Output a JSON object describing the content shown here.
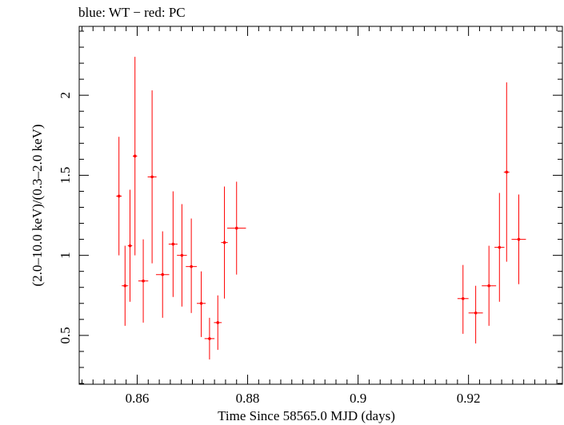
{
  "chart_data": {
    "type": "scatter",
    "title": "blue: WT − red: PC",
    "xlabel": "Time Since 58565.0 MJD (days)",
    "ylabel": "(2.0–10.0 keV)/(0.3–2.0 keV)",
    "xlim": [
      0.8495,
      0.937
    ],
    "ylim": [
      0.195,
      2.43
    ],
    "xticks": [
      0.86,
      0.88,
      0.9,
      0.92
    ],
    "xtick_labels": [
      "0.86",
      "0.88",
      "0.9",
      "0.92"
    ],
    "yticks": [
      0.5,
      1,
      1.5,
      2
    ],
    "ytick_labels": [
      "0.5",
      "1",
      "1.5",
      "2"
    ],
    "grid": false,
    "series": [
      {
        "color": "#ff0000",
        "points": [
          {
            "x": 0.8567,
            "xerr": 0.0005,
            "y": 1.37,
            "ylo": 1.0,
            "yhi": 1.74
          },
          {
            "x": 0.8578,
            "xerr": 0.0006,
            "y": 0.81,
            "ylo": 0.56,
            "yhi": 1.06
          },
          {
            "x": 0.8587,
            "xerr": 0.0004,
            "y": 1.06,
            "ylo": 0.71,
            "yhi": 1.41
          },
          {
            "x": 0.8596,
            "xerr": 0.0004,
            "y": 1.62,
            "ylo": 1.0,
            "yhi": 2.24
          },
          {
            "x": 0.8611,
            "xerr": 0.0009,
            "y": 0.84,
            "ylo": 0.58,
            "yhi": 1.1
          },
          {
            "x": 0.8627,
            "xerr": 0.0008,
            "y": 1.49,
            "ylo": 0.95,
            "yhi": 2.03
          },
          {
            "x": 0.8646,
            "xerr": 0.0012,
            "y": 0.88,
            "ylo": 0.61,
            "yhi": 1.15
          },
          {
            "x": 0.8665,
            "xerr": 0.0008,
            "y": 1.07,
            "ylo": 0.74,
            "yhi": 1.4
          },
          {
            "x": 0.8681,
            "xerr": 0.0009,
            "y": 1.0,
            "ylo": 0.68,
            "yhi": 1.32
          },
          {
            "x": 0.8698,
            "xerr": 0.001,
            "y": 0.93,
            "ylo": 0.64,
            "yhi": 1.23
          },
          {
            "x": 0.8716,
            "xerr": 0.0008,
            "y": 0.7,
            "ylo": 0.49,
            "yhi": 0.9
          },
          {
            "x": 0.8731,
            "xerr": 0.0009,
            "y": 0.48,
            "ylo": 0.35,
            "yhi": 0.61
          },
          {
            "x": 0.8746,
            "xerr": 0.0007,
            "y": 0.58,
            "ylo": 0.41,
            "yhi": 0.75
          },
          {
            "x": 0.8758,
            "xerr": 0.0006,
            "y": 1.08,
            "ylo": 0.73,
            "yhi": 1.43
          },
          {
            "x": 0.878,
            "xerr": 0.0017,
            "y": 1.17,
            "ylo": 0.88,
            "yhi": 1.46
          },
          {
            "x": 0.919,
            "xerr": 0.001,
            "y": 0.73,
            "ylo": 0.51,
            "yhi": 0.94
          },
          {
            "x": 0.9213,
            "xerr": 0.0013,
            "y": 0.64,
            "ylo": 0.45,
            "yhi": 0.81
          },
          {
            "x": 0.9237,
            "xerr": 0.0013,
            "y": 0.81,
            "ylo": 0.56,
            "yhi": 1.06
          },
          {
            "x": 0.9256,
            "xerr": 0.0009,
            "y": 1.05,
            "ylo": 0.71,
            "yhi": 1.39
          },
          {
            "x": 0.9269,
            "xerr": 0.0005,
            "y": 1.52,
            "ylo": 0.96,
            "yhi": 2.08
          },
          {
            "x": 0.9291,
            "xerr": 0.0013,
            "y": 1.1,
            "ylo": 0.82,
            "yhi": 1.38
          }
        ]
      }
    ]
  }
}
